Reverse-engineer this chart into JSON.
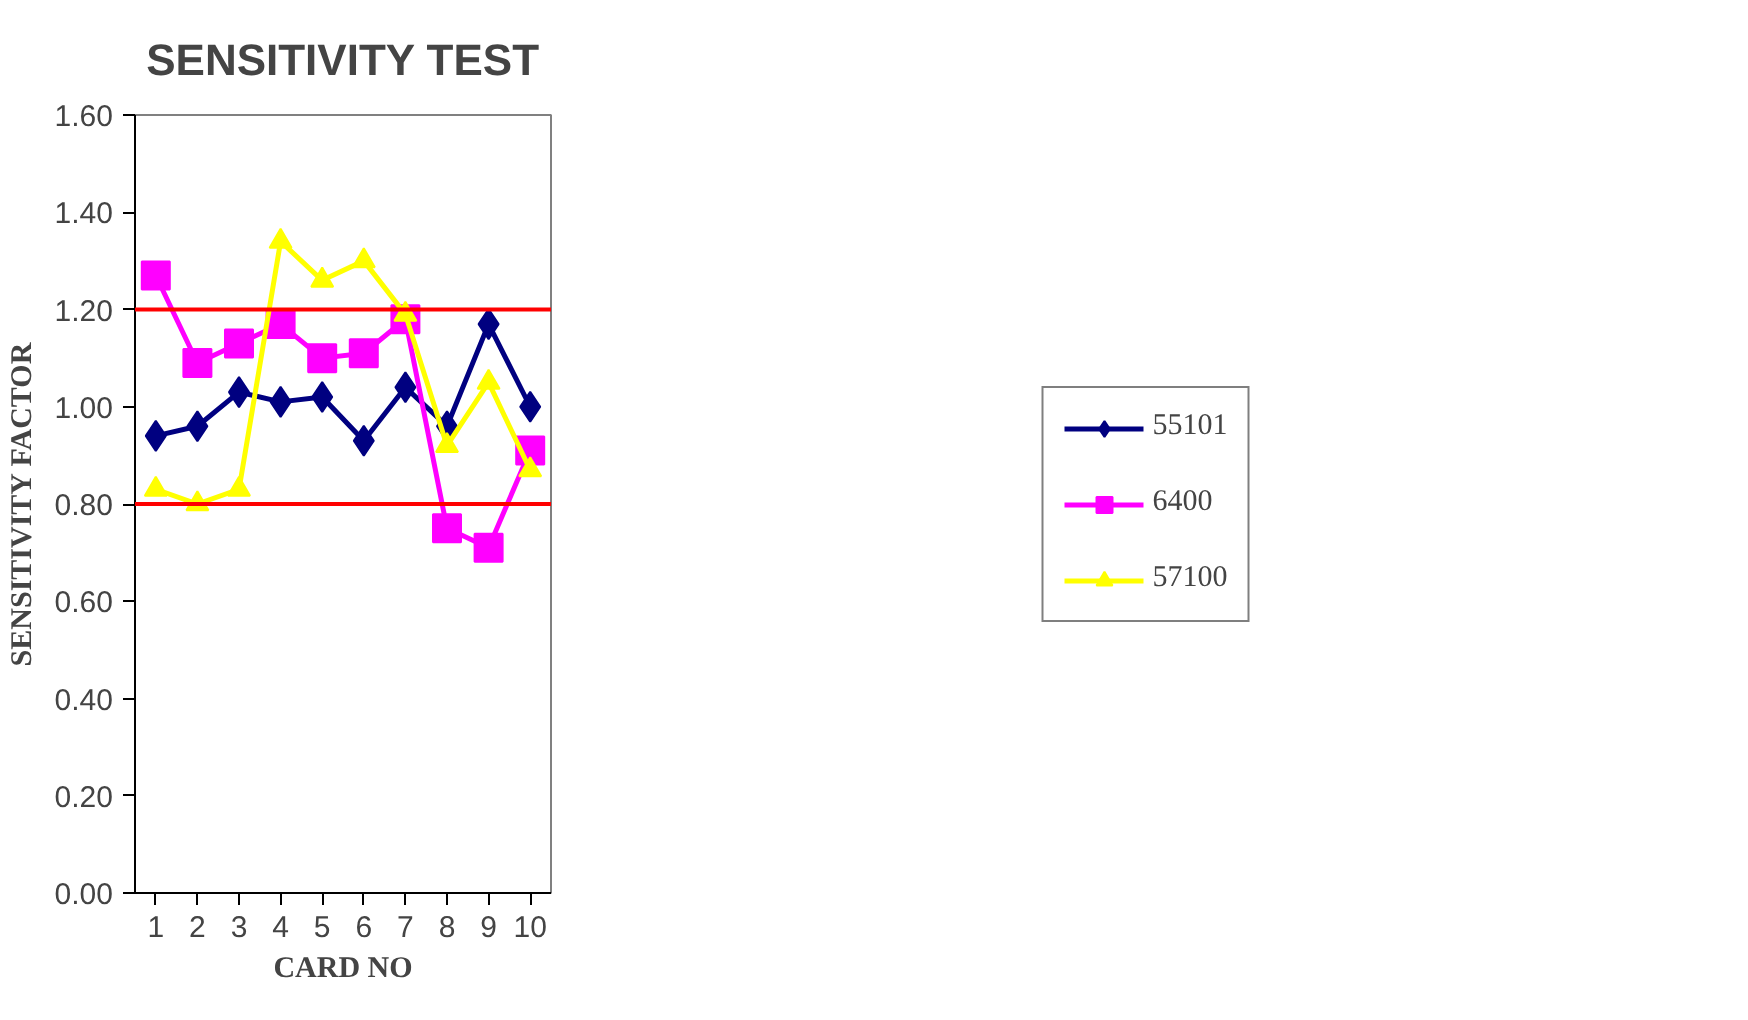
{
  "chart_data": {
    "type": "line",
    "title": "SENSITIVITY TEST",
    "xlabel": "CARD NO",
    "ylabel": "SENSITIVITY FACTOR",
    "categories": [
      "1",
      "2",
      "3",
      "4",
      "5",
      "6",
      "7",
      "8",
      "9",
      "10"
    ],
    "series": [
      {
        "name": "55101",
        "color": "#000080",
        "marker": "diamond",
        "values": [
          0.94,
          0.96,
          1.03,
          1.01,
          1.02,
          0.93,
          1.04,
          0.96,
          1.17,
          1.0
        ]
      },
      {
        "name": "6400",
        "color": "#ff00ff",
        "marker": "square",
        "values": [
          1.27,
          1.09,
          1.13,
          1.17,
          1.1,
          1.11,
          1.18,
          0.75,
          0.71,
          0.91
        ]
      },
      {
        "name": "57100",
        "color": "#ffff00",
        "marker": "triangle",
        "values": [
          0.83,
          0.8,
          0.83,
          1.34,
          1.26,
          1.3,
          1.19,
          0.92,
          1.05,
          0.87
        ]
      }
    ],
    "ylim": [
      0,
      1.6
    ],
    "yticks": [
      {
        "value": 0,
        "label": "0.00"
      },
      {
        "value": 0.2,
        "label": "0.20"
      },
      {
        "value": 0.4,
        "label": "0.40"
      },
      {
        "value": 0.6,
        "label": "0.60"
      },
      {
        "value": 0.8,
        "label": "0.80"
      },
      {
        "value": 1.0,
        "label": "1.00"
      },
      {
        "value": 1.2,
        "label": "1.20"
      },
      {
        "value": 1.4,
        "label": "1.40"
      },
      {
        "value": 1.6,
        "label": "1.60"
      }
    ],
    "ref_lines": [
      {
        "axis": "y",
        "value": 1.2,
        "label": null,
        "color": "#ff0000"
      },
      {
        "axis": "y",
        "value": 0.8,
        "label": null,
        "color": "#ff0000"
      }
    ],
    "grid": false,
    "legend": "right",
    "line_style": "solid"
  }
}
